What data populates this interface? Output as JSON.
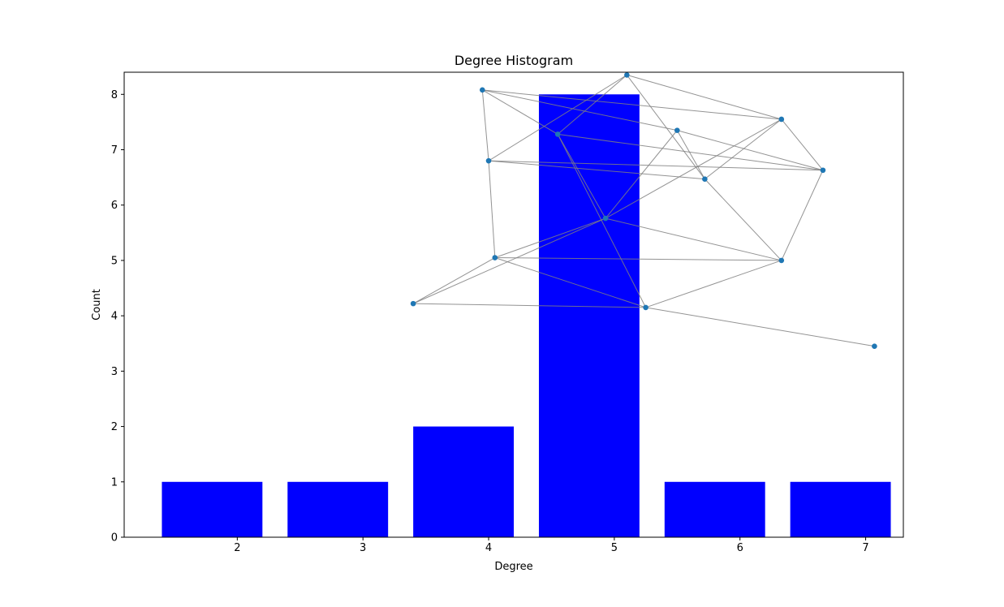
{
  "chart_data": {
    "type": "bar",
    "title": "Degree Histogram",
    "xlabel": "Degree",
    "ylabel": "Count",
    "x": [
      1.8,
      2.8,
      3.8,
      4.8,
      5.8,
      6.8
    ],
    "values": [
      1,
      1,
      2,
      8,
      1,
      1
    ],
    "bar_width": 0.8,
    "xlim": [
      1.1,
      7.3
    ],
    "ylim": [
      0,
      8.4
    ],
    "xticks": [
      2,
      3,
      4,
      5,
      6,
      7
    ],
    "yticks": [
      0,
      1,
      2,
      3,
      4,
      5,
      6,
      7,
      8
    ],
    "bar_color": "#0000ff",
    "grid": false,
    "inset_graph": {
      "node_color": "#1f77b4",
      "edge_color": "#808080",
      "nodes": [
        [
          5.1,
          8.35
        ],
        [
          3.95,
          8.08
        ],
        [
          4.55,
          7.28
        ],
        [
          5.5,
          7.35
        ],
        [
          6.33,
          7.55
        ],
        [
          4.0,
          6.8
        ],
        [
          5.72,
          6.47
        ],
        [
          6.66,
          6.63
        ],
        [
          4.93,
          5.76
        ],
        [
          4.05,
          5.05
        ],
        [
          6.33,
          5.0
        ],
        [
          3.4,
          4.22
        ],
        [
          5.25,
          4.15
        ],
        [
          7.07,
          3.45
        ]
      ],
      "edges": [
        [
          0,
          2
        ],
        [
          0,
          4
        ],
        [
          0,
          5
        ],
        [
          0,
          6
        ],
        [
          1,
          2
        ],
        [
          1,
          3
        ],
        [
          1,
          4
        ],
        [
          1,
          5
        ],
        [
          2,
          7
        ],
        [
          2,
          8
        ],
        [
          2,
          12
        ],
        [
          3,
          6
        ],
        [
          3,
          7
        ],
        [
          3,
          8
        ],
        [
          4,
          6
        ],
        [
          4,
          8
        ],
        [
          4,
          7
        ],
        [
          5,
          6
        ],
        [
          5,
          7
        ],
        [
          5,
          9
        ],
        [
          6,
          10
        ],
        [
          7,
          10
        ],
        [
          8,
          9
        ],
        [
          8,
          10
        ],
        [
          8,
          11
        ],
        [
          9,
          10
        ],
        [
          9,
          11
        ],
        [
          9,
          12
        ],
        [
          10,
          12
        ],
        [
          11,
          12
        ],
        [
          12,
          13
        ]
      ]
    }
  }
}
